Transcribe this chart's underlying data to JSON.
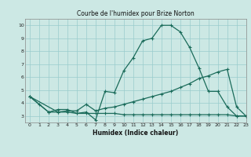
{
  "title": "Courbe de l'humidex pour Brize Norton",
  "xlabel": "Humidex (Indice chaleur)",
  "background_color": "#cce8e4",
  "grid_color": "#99cccc",
  "line_color": "#1a6b5a",
  "xlim": [
    -0.5,
    23
  ],
  "ylim": [
    2.5,
    10.5
  ],
  "xticks": [
    0,
    1,
    2,
    3,
    4,
    5,
    6,
    7,
    8,
    9,
    10,
    11,
    12,
    13,
    14,
    15,
    16,
    17,
    18,
    19,
    20,
    21,
    22,
    23
  ],
  "yticks": [
    3,
    4,
    5,
    6,
    7,
    8,
    9,
    10
  ],
  "series1_x": [
    0,
    1,
    2,
    3,
    4,
    5,
    6,
    7,
    8,
    9,
    10,
    11,
    12,
    13,
    14,
    15,
    16,
    17,
    18,
    19,
    20,
    21,
    22,
    23
  ],
  "series1_y": [
    4.5,
    3.9,
    3.3,
    3.5,
    3.5,
    3.2,
    3.3,
    2.7,
    4.9,
    4.8,
    6.5,
    7.5,
    8.8,
    9.0,
    10.0,
    10.0,
    9.5,
    8.3,
    6.7,
    4.9,
    4.9,
    3.7,
    3.0,
    3.0
  ],
  "series2_x": [
    0,
    3,
    4,
    5,
    6,
    7,
    8,
    9,
    10,
    11,
    12,
    13,
    14,
    15,
    16,
    17,
    18,
    19,
    20,
    21,
    22,
    23
  ],
  "series2_y": [
    4.5,
    3.3,
    3.4,
    3.4,
    3.9,
    3.4,
    3.6,
    3.7,
    3.9,
    4.1,
    4.3,
    4.5,
    4.7,
    4.9,
    5.2,
    5.5,
    5.9,
    6.1,
    6.4,
    6.6,
    3.7,
    3.0
  ],
  "series3_x": [
    0,
    2,
    3,
    4,
    5,
    6,
    7,
    8,
    9,
    10,
    11,
    12,
    13,
    14,
    15,
    16,
    17,
    18,
    19,
    20,
    21,
    22,
    23
  ],
  "series3_y": [
    4.5,
    3.3,
    3.3,
    3.3,
    3.2,
    3.2,
    3.2,
    3.2,
    3.2,
    3.1,
    3.1,
    3.1,
    3.1,
    3.1,
    3.1,
    3.1,
    3.1,
    3.1,
    3.1,
    3.1,
    3.1,
    3.0,
    3.0
  ]
}
